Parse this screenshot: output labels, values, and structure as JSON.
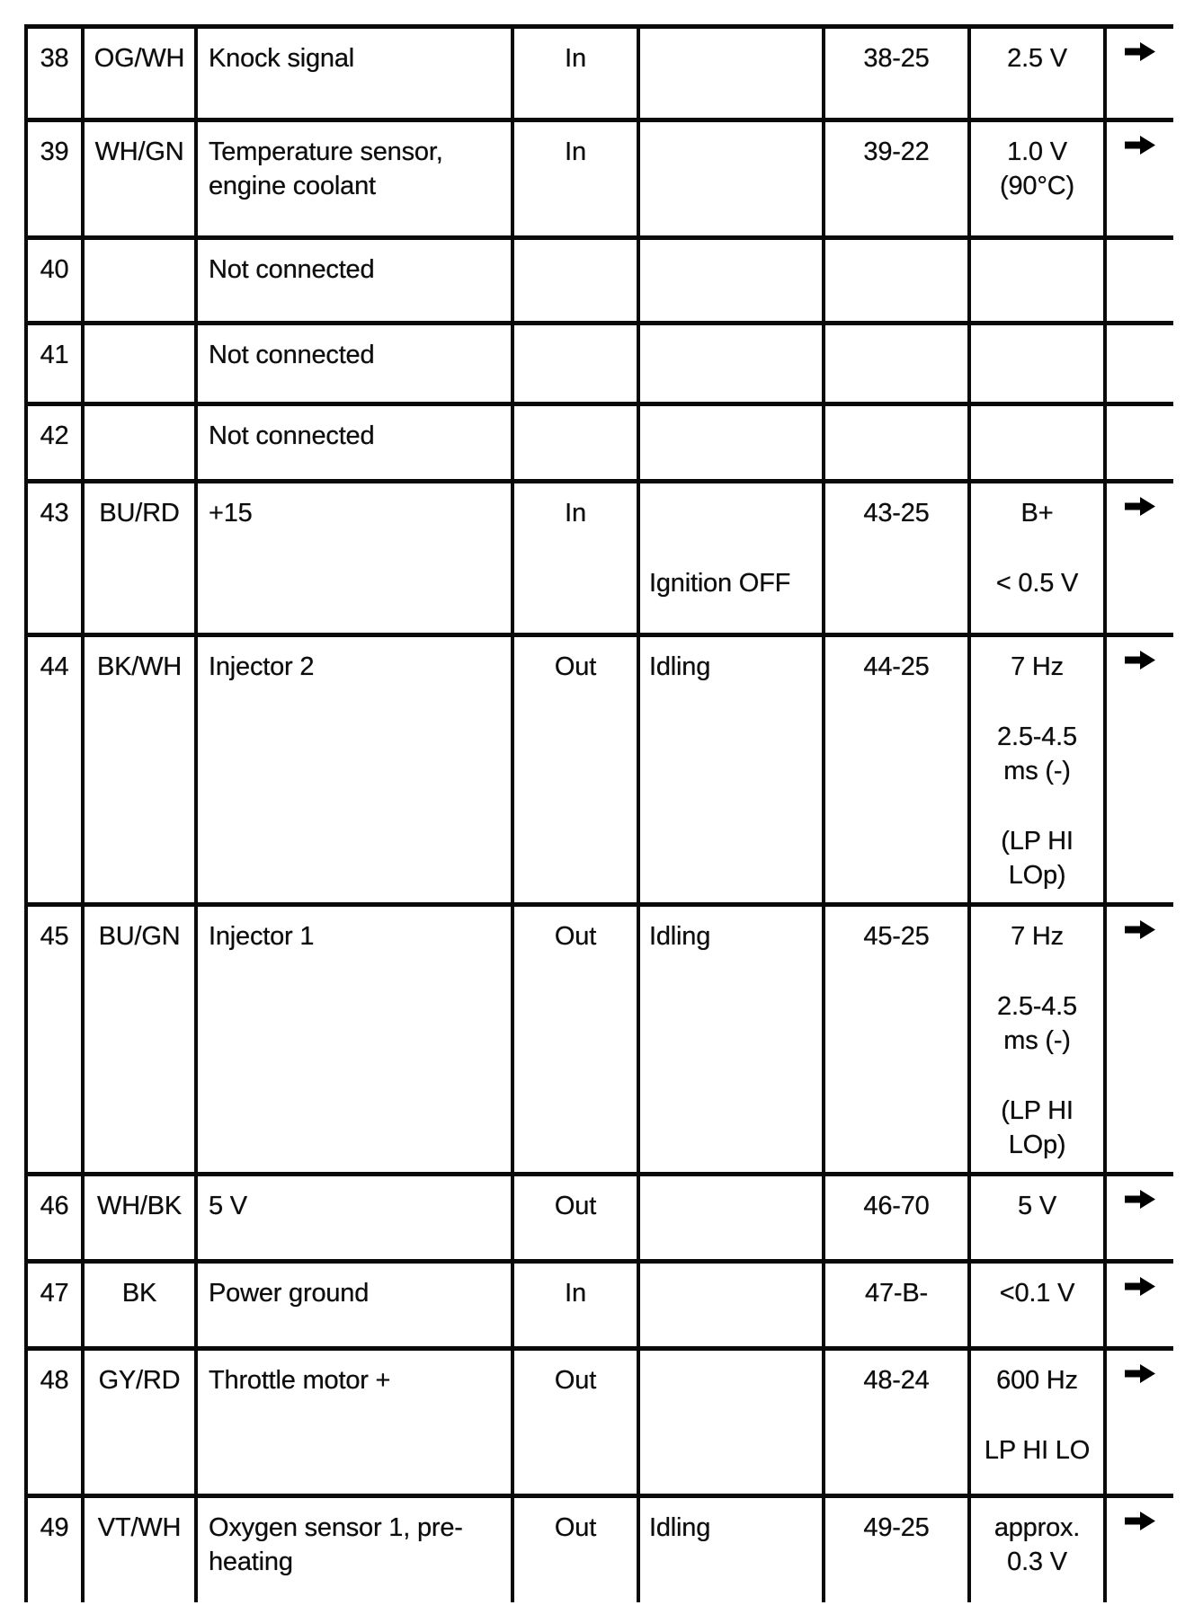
{
  "colors": {
    "ink": "#0d0d0d",
    "paper": "#ffffff",
    "arrow": "#000000"
  },
  "icons": {
    "row_marker": "right-arrow-icon"
  },
  "table": {
    "description": "ECU pinout signal table rows 38-49",
    "rows": [
      {
        "pin": "38",
        "color": "OG/WH",
        "desc": "Knock signal",
        "dir": "In",
        "cond": [],
        "meas": "38-25",
        "value": [
          "2.5 V"
        ],
        "arrow": true
      },
      {
        "pin": "39",
        "color": "WH/GN",
        "desc": "Temperature sensor,\nengine coolant",
        "dir": "In",
        "cond": [],
        "meas": "39-22",
        "value": [
          "1.0 V\n(90°C)"
        ],
        "arrow": true
      },
      {
        "pin": "40",
        "color": "",
        "desc": "Not connected",
        "dir": "",
        "cond": [],
        "meas": "",
        "value": [],
        "arrow": false
      },
      {
        "pin": "41",
        "color": "",
        "desc": "Not connected",
        "dir": "",
        "cond": [],
        "meas": "",
        "value": [],
        "arrow": false
      },
      {
        "pin": "42",
        "color": "",
        "desc": "Not connected",
        "dir": "",
        "cond": [],
        "meas": "",
        "value": [],
        "arrow": false
      },
      {
        "pin": "43",
        "color": "BU/RD",
        "desc": "+15",
        "dir": "In",
        "cond": [
          "",
          "Ignition OFF"
        ],
        "meas": "43-25",
        "value": [
          "B+",
          "< 0.5 V"
        ],
        "arrow": true
      },
      {
        "pin": "44",
        "color": "BK/WH",
        "desc": "Injector 2",
        "dir": "Out",
        "cond": [
          "Idling"
        ],
        "meas": "44-25",
        "value": [
          "7 Hz",
          "2.5-4.5\nms (-)",
          "(LP HI\nLOp)"
        ],
        "arrow": true
      },
      {
        "pin": "45",
        "color": "BU/GN",
        "desc": "Injector 1",
        "dir": "Out",
        "cond": [
          "Idling"
        ],
        "meas": "45-25",
        "value": [
          "7 Hz",
          "2.5-4.5\nms (-)",
          "(LP HI\nLOp)"
        ],
        "arrow": true
      },
      {
        "pin": "46",
        "color": "WH/BK",
        "desc": "5 V",
        "dir": "Out",
        "cond": [],
        "meas": "46-70",
        "value": [
          "5 V"
        ],
        "arrow": true
      },
      {
        "pin": "47",
        "color": "BK",
        "desc": "Power ground",
        "dir": "In",
        "cond": [],
        "meas": "47-B-",
        "value": [
          "<0.1 V"
        ],
        "arrow": true
      },
      {
        "pin": "48",
        "color": "GY/RD",
        "desc": "Throttle motor +",
        "dir": "Out",
        "cond": [],
        "meas": "48-24",
        "value": [
          "600 Hz",
          "LP HI LO"
        ],
        "arrow": true
      },
      {
        "pin": "49",
        "color": "VT/WH",
        "desc": "Oxygen sensor 1, pre-\nheating",
        "dir": "Out",
        "cond": [
          "Idling"
        ],
        "meas": "49-25",
        "value": [
          "approx.\n0.3 V"
        ],
        "arrow": true
      }
    ]
  }
}
